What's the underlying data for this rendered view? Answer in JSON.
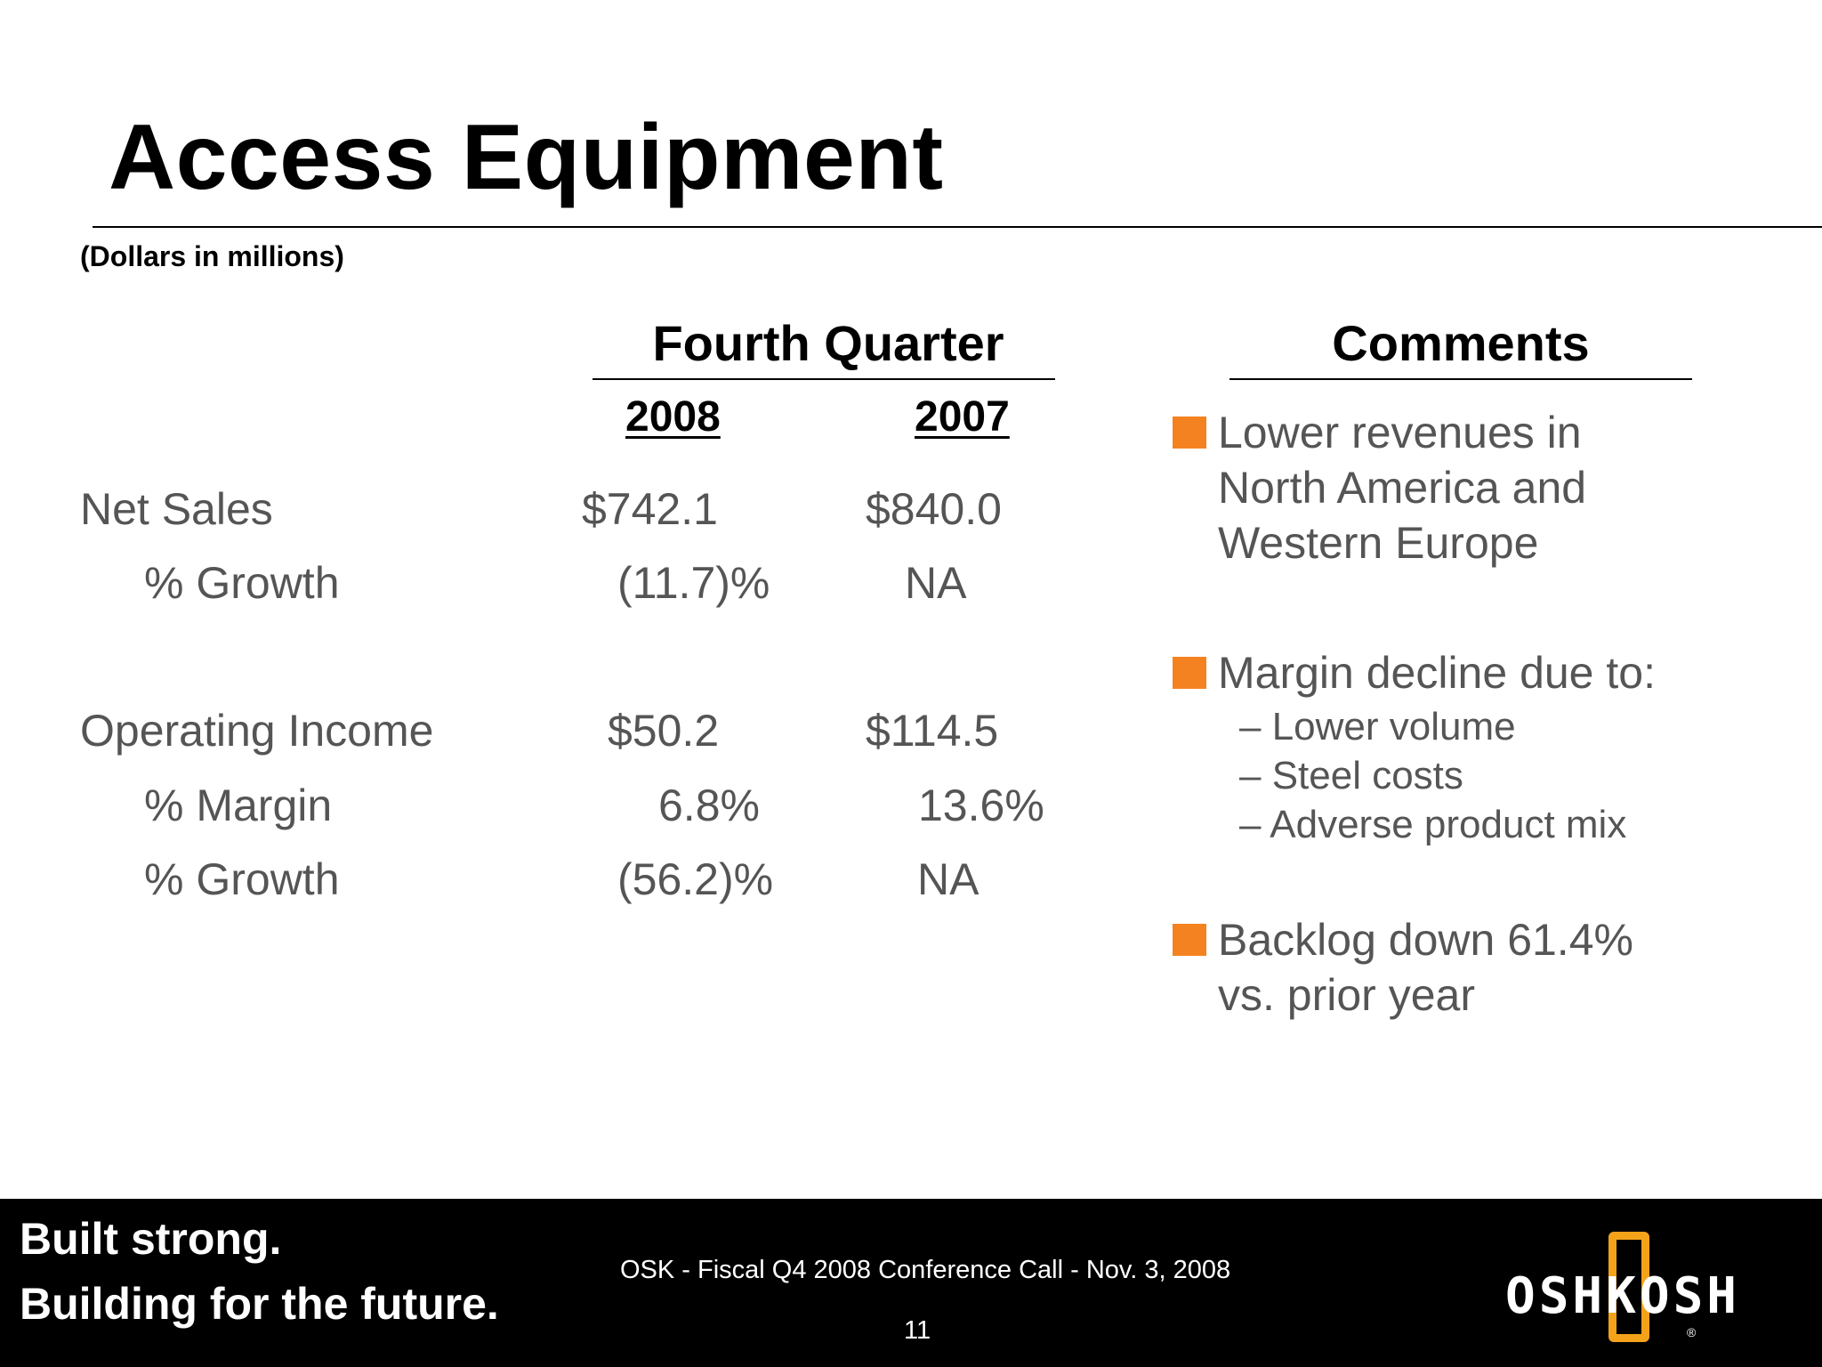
{
  "slide": {
    "title": "Access Equipment",
    "units_note": "(Dollars in millions)"
  },
  "table": {
    "header": "Fourth Quarter",
    "years": [
      "2008",
      "2007"
    ],
    "rows": [
      {
        "label": "Net Sales",
        "v2008": "$742.1",
        "v2007": "$840.0"
      },
      {
        "label": "% Growth",
        "v2008": "(11.7)%",
        "v2007": "NA"
      },
      {
        "label": "Operating Income",
        "v2008": "$50.2",
        "v2007": "$114.5"
      },
      {
        "label": "% Margin",
        "v2008": "6.8%",
        "v2007": "13.6%"
      },
      {
        "label": "% Growth",
        "v2008": "(56.2)%",
        "v2007": "NA"
      }
    ]
  },
  "comments": {
    "header": "Comments",
    "bullets": [
      {
        "lines": [
          "Lower revenues in",
          "North America and",
          "Western Europe"
        ]
      },
      {
        "lines": [
          "Margin decline due to:"
        ],
        "subs": [
          "– Lower volume",
          "– Steel costs",
          "– Adverse product mix"
        ]
      },
      {
        "lines": [
          "Backlog down 61.4%",
          "vs. prior year"
        ]
      }
    ],
    "bullet_color": "#f58220"
  },
  "footer": {
    "tagline_1": "Built strong.",
    "tagline_2": "Building for the future.",
    "event": "OSK - Fiscal Q4 2008 Conference Call - Nov. 3, 2008",
    "page_number": "11",
    "logo_text": "OSHKOSH",
    "logo_reg": "®",
    "logo_accent_color": "#f4a21a"
  }
}
